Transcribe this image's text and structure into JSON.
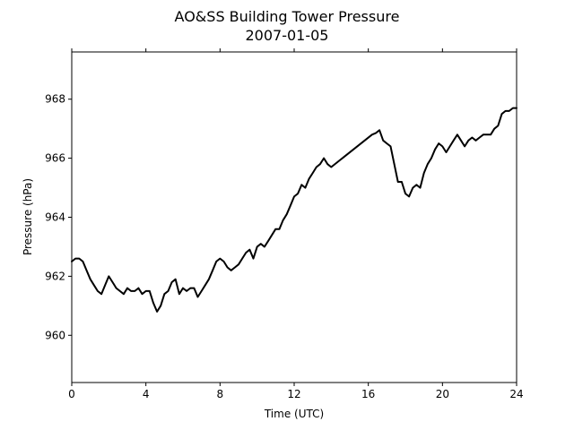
{
  "chart_data": {
    "type": "line",
    "title": "AO&SS Building Tower Pressure",
    "subtitle": "2007-01-05",
    "xlabel": "Time (UTC)",
    "ylabel": "Pressure (hPa)",
    "xlim": [
      0,
      24
    ],
    "ylim": [
      958.4,
      969.6
    ],
    "xticks": [
      0,
      4,
      8,
      12,
      16,
      20,
      24
    ],
    "yticks": [
      960,
      962,
      964,
      966,
      968
    ],
    "grid": false,
    "line_color": "#000000",
    "series": [
      {
        "x": [
          0.0,
          0.2,
          0.4,
          0.6,
          0.8,
          1.0,
          1.2,
          1.4,
          1.6,
          1.8,
          2.0,
          2.2,
          2.4,
          2.6,
          2.8,
          3.0,
          3.2,
          3.4,
          3.6,
          3.8,
          4.0,
          4.2,
          4.4,
          4.6,
          4.8,
          5.0,
          5.2,
          5.4,
          5.6,
          5.8,
          6.0,
          6.2,
          6.4,
          6.6,
          6.8,
          7.0,
          7.2,
          7.4,
          7.6,
          7.8,
          8.0,
          8.2,
          8.4,
          8.6,
          8.8,
          9.0,
          9.2,
          9.4,
          9.6,
          9.8,
          10.0,
          10.2,
          10.4,
          10.6,
          10.8,
          11.0,
          11.2,
          11.4,
          11.6,
          11.8,
          12.0,
          12.2,
          12.4,
          12.6,
          12.8,
          13.0,
          13.2,
          13.4,
          13.6,
          13.8,
          14.0,
          16.2,
          16.4,
          16.6,
          16.8,
          17.0,
          17.2,
          17.4,
          17.6,
          17.8,
          18.0,
          18.2,
          18.4,
          18.6,
          18.8,
          19.0,
          19.2,
          19.4,
          19.6,
          19.8,
          20.0,
          20.2,
          20.4,
          20.6,
          20.8,
          21.0,
          21.2,
          21.4,
          21.6,
          21.8,
          22.0,
          22.2,
          22.4,
          22.6,
          22.8,
          23.0,
          23.2,
          23.4,
          23.6,
          23.8,
          24.0
        ],
        "values": [
          962.5,
          962.6,
          962.6,
          962.5,
          962.2,
          961.9,
          961.7,
          961.5,
          961.4,
          961.7,
          962.0,
          961.8,
          961.6,
          961.5,
          961.4,
          961.6,
          961.5,
          961.5,
          961.6,
          961.4,
          961.5,
          961.5,
          961.1,
          960.8,
          961.0,
          961.4,
          961.5,
          961.8,
          961.9,
          961.4,
          961.6,
          961.5,
          961.6,
          961.6,
          961.3,
          961.5,
          961.7,
          961.9,
          962.2,
          962.5,
          962.6,
          962.5,
          962.3,
          962.2,
          962.3,
          962.4,
          962.6,
          962.8,
          962.9,
          962.6,
          963.0,
          963.1,
          963.0,
          963.2,
          963.4,
          963.6,
          963.6,
          963.9,
          964.1,
          964.4,
          964.7,
          964.8,
          965.1,
          965.0,
          965.3,
          965.5,
          965.7,
          965.8,
          966.0,
          965.8,
          965.7,
          966.8,
          966.85,
          966.95,
          966.6,
          966.5,
          966.4,
          965.8,
          965.2,
          965.2,
          964.8,
          964.7,
          965.0,
          965.1,
          965.0,
          965.5,
          965.8,
          966.0,
          966.3,
          966.5,
          966.4,
          966.2,
          966.4,
          966.6,
          966.8,
          966.6,
          966.4,
          966.6,
          966.7,
          966.6,
          966.7,
          966.8,
          966.8,
          966.8,
          967.0,
          967.1,
          967.5,
          967.6,
          967.6,
          967.7,
          967.7
        ]
      }
    ]
  }
}
